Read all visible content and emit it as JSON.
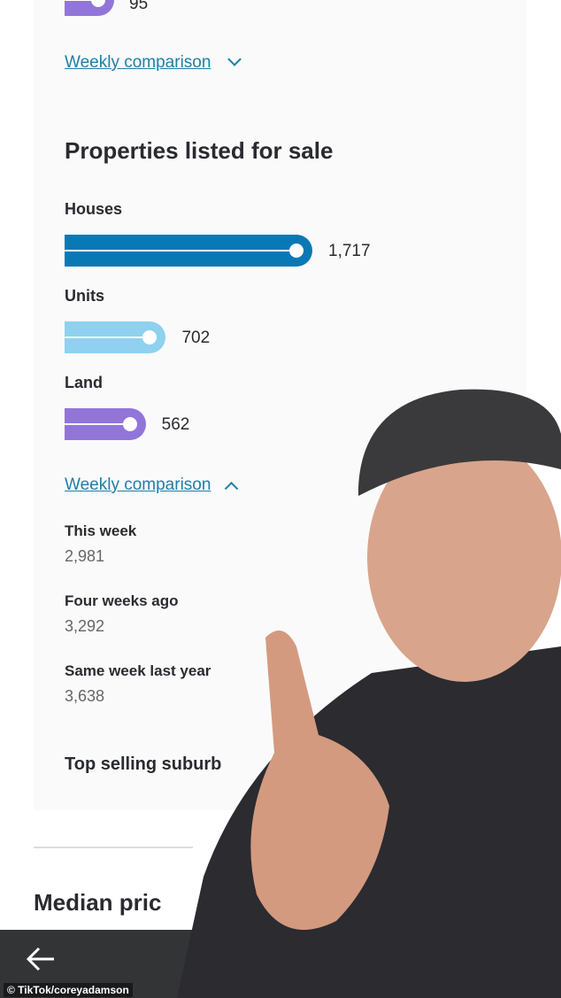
{
  "top": {
    "partial_value": "95",
    "weekly_link": "Weekly comparison"
  },
  "listed": {
    "title": "Properties listed for sale",
    "bars": [
      {
        "label": "Houses",
        "value": "1,717",
        "amount": 1717,
        "color": "#0a78b4"
      },
      {
        "label": "Units",
        "value": "702",
        "amount": 702,
        "color": "#8fd1ef"
      },
      {
        "label": "Land",
        "value": "562",
        "amount": 562,
        "color": "#9275d9"
      }
    ],
    "weekly_link": "Weekly comparison",
    "comparison": [
      {
        "label": "This week",
        "value": "2,981"
      },
      {
        "label": "Four weeks ago",
        "value": "3,292"
      },
      {
        "label": "Same week last year",
        "value": "3,638"
      }
    ]
  },
  "top_selling": "Top selling suburb",
  "median": "Median pric",
  "nav": {
    "back_icon": "arrow-left-icon"
  },
  "credit": "© TikTok/coreyadamson"
}
